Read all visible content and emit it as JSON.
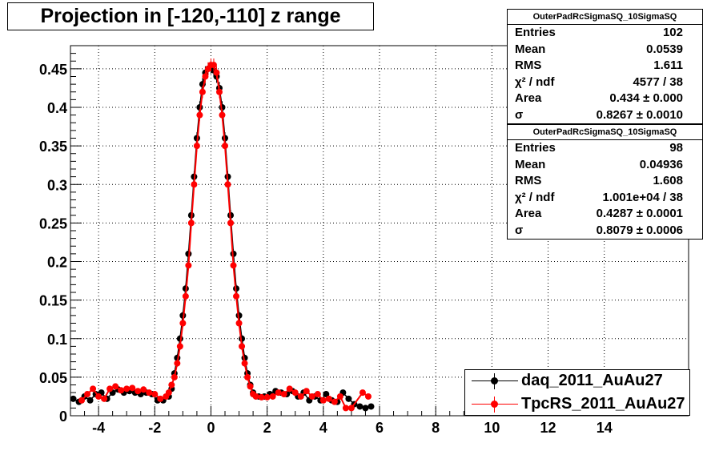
{
  "title": "Projection in [-120,-110] z range",
  "stats_boxes": [
    {
      "name": "OuterPadRcSigmaSQ_10SigmaSQ",
      "rows": [
        {
          "label": "Entries",
          "value": "102"
        },
        {
          "label": "Mean",
          "value": "0.0539"
        },
        {
          "label": "RMS",
          "value": "1.611"
        },
        {
          "label": "χ² / ndf",
          "value": "4577 / 38"
        },
        {
          "label": "Area",
          "value": "0.434 ± 0.000"
        },
        {
          "label": "σ",
          "value": "0.8267 ± 0.0010"
        }
      ]
    },
    {
      "name": "OuterPadRcSigmaSQ_10SigmaSQ",
      "rows": [
        {
          "label": "Entries",
          "value": "98"
        },
        {
          "label": "Mean",
          "value": "0.04936"
        },
        {
          "label": "RMS",
          "value": "1.608"
        },
        {
          "label": "χ² / ndf",
          "value": "1.001e+04 / 38"
        },
        {
          "label": "Area",
          "value": "0.4287 ± 0.0001"
        },
        {
          "label": "σ",
          "value": "0.8079 ± 0.0006"
        }
      ]
    }
  ],
  "legend": [
    {
      "label": "daq_2011_AuAu27",
      "color": "#000000"
    },
    {
      "label": "TpcRS_2011_AuAu27",
      "color": "#ff0000"
    }
  ],
  "chart_data": {
    "type": "scatter",
    "title": "Projection in [-120,-110] z range",
    "xlabel": "",
    "ylabel": "",
    "xlim": [
      -5,
      17
    ],
    "ylim": [
      0,
      0.48
    ],
    "x_ticks": [
      -4,
      -2,
      0,
      2,
      4,
      6,
      8,
      10,
      12,
      14
    ],
    "y_ticks": [
      0,
      0.05,
      0.1,
      0.15,
      0.2,
      0.25,
      0.3,
      0.35,
      0.4,
      0.45
    ],
    "y_tick_labels": [
      "0",
      "0.05",
      "0.1",
      "0.15",
      "0.2",
      "0.25",
      "0.3",
      "0.35",
      "0.4",
      "0.45"
    ],
    "grid": true,
    "legend_position": "bottom-right",
    "series": [
      {
        "name": "daq_2011_AuAu27",
        "color": "#000000",
        "points": [
          [
            -4.9,
            0.022
          ],
          [
            -4.7,
            0.018
          ],
          [
            -4.5,
            0.025
          ],
          [
            -4.3,
            0.02
          ],
          [
            -4.1,
            0.028
          ],
          [
            -3.9,
            0.03
          ],
          [
            -3.7,
            0.022
          ],
          [
            -3.5,
            0.03
          ],
          [
            -3.3,
            0.034
          ],
          [
            -3.1,
            0.03
          ],
          [
            -2.9,
            0.032
          ],
          [
            -2.7,
            0.03
          ],
          [
            -2.5,
            0.028
          ],
          [
            -2.3,
            0.03
          ],
          [
            -2.1,
            0.028
          ],
          [
            -1.9,
            0.02
          ],
          [
            -1.7,
            0.02
          ],
          [
            -1.5,
            0.025
          ],
          [
            -1.4,
            0.035
          ],
          [
            -1.3,
            0.055
          ],
          [
            -1.2,
            0.075
          ],
          [
            -1.1,
            0.1
          ],
          [
            -1.0,
            0.13
          ],
          [
            -0.9,
            0.165
          ],
          [
            -0.8,
            0.21
          ],
          [
            -0.7,
            0.26
          ],
          [
            -0.6,
            0.31
          ],
          [
            -0.5,
            0.36
          ],
          [
            -0.4,
            0.4
          ],
          [
            -0.3,
            0.43
          ],
          [
            -0.2,
            0.445
          ],
          [
            -0.1,
            0.45
          ],
          [
            0.0,
            0.452
          ],
          [
            0.1,
            0.448
          ],
          [
            0.2,
            0.44
          ],
          [
            0.3,
            0.425
          ],
          [
            0.4,
            0.4
          ],
          [
            0.5,
            0.36
          ],
          [
            0.6,
            0.31
          ],
          [
            0.7,
            0.26
          ],
          [
            0.8,
            0.21
          ],
          [
            0.9,
            0.165
          ],
          [
            1.0,
            0.13
          ],
          [
            1.1,
            0.1
          ],
          [
            1.2,
            0.075
          ],
          [
            1.3,
            0.055
          ],
          [
            1.4,
            0.04
          ],
          [
            1.5,
            0.03
          ],
          [
            1.7,
            0.025
          ],
          [
            1.9,
            0.025
          ],
          [
            2.1,
            0.028
          ],
          [
            2.3,
            0.032
          ],
          [
            2.5,
            0.03
          ],
          [
            2.7,
            0.028
          ],
          [
            2.9,
            0.032
          ],
          [
            3.1,
            0.025
          ],
          [
            3.3,
            0.03
          ],
          [
            3.5,
            0.02
          ],
          [
            3.7,
            0.025
          ],
          [
            3.9,
            0.02
          ],
          [
            4.1,
            0.028
          ],
          [
            4.3,
            0.02
          ],
          [
            4.5,
            0.018
          ],
          [
            4.7,
            0.03
          ],
          [
            4.9,
            0.022
          ],
          [
            5.1,
            0.015
          ],
          [
            5.3,
            0.012
          ],
          [
            5.5,
            0.01
          ],
          [
            5.7,
            0.012
          ]
        ]
      },
      {
        "name": "TpcRS_2011_AuAu27",
        "color": "#ff0000",
        "points": [
          [
            -4.6,
            0.02
          ],
          [
            -4.4,
            0.028
          ],
          [
            -4.2,
            0.035
          ],
          [
            -4.0,
            0.025
          ],
          [
            -3.8,
            0.022
          ],
          [
            -3.6,
            0.035
          ],
          [
            -3.4,
            0.038
          ],
          [
            -3.2,
            0.033
          ],
          [
            -3.0,
            0.035
          ],
          [
            -2.8,
            0.036
          ],
          [
            -2.6,
            0.032
          ],
          [
            -2.4,
            0.034
          ],
          [
            -2.2,
            0.03
          ],
          [
            -2.0,
            0.028
          ],
          [
            -1.8,
            0.022
          ],
          [
            -1.6,
            0.025
          ],
          [
            -1.5,
            0.03
          ],
          [
            -1.4,
            0.04
          ],
          [
            -1.3,
            0.05
          ],
          [
            -1.2,
            0.068
          ],
          [
            -1.1,
            0.09
          ],
          [
            -1.0,
            0.12
          ],
          [
            -0.9,
            0.155
          ],
          [
            -0.8,
            0.195
          ],
          [
            -0.7,
            0.25
          ],
          [
            -0.6,
            0.3
          ],
          [
            -0.5,
            0.35
          ],
          [
            -0.4,
            0.39
          ],
          [
            -0.3,
            0.42
          ],
          [
            -0.2,
            0.44
          ],
          [
            -0.1,
            0.45
          ],
          [
            0.0,
            0.455
          ],
          [
            0.1,
            0.455
          ],
          [
            0.2,
            0.445
          ],
          [
            0.3,
            0.42
          ],
          [
            0.4,
            0.39
          ],
          [
            0.5,
            0.35
          ],
          [
            0.6,
            0.3
          ],
          [
            0.7,
            0.25
          ],
          [
            0.8,
            0.195
          ],
          [
            0.9,
            0.155
          ],
          [
            1.0,
            0.12
          ],
          [
            1.1,
            0.09
          ],
          [
            1.2,
            0.068
          ],
          [
            1.3,
            0.05
          ],
          [
            1.4,
            0.038
          ],
          [
            1.5,
            0.028
          ],
          [
            1.6,
            0.025
          ],
          [
            1.8,
            0.024
          ],
          [
            2.0,
            0.024
          ],
          [
            2.2,
            0.025
          ],
          [
            2.4,
            0.03
          ],
          [
            2.6,
            0.028
          ],
          [
            2.8,
            0.035
          ],
          [
            3.0,
            0.03
          ],
          [
            3.2,
            0.025
          ],
          [
            3.4,
            0.032
          ],
          [
            3.6,
            0.025
          ],
          [
            3.8,
            0.028
          ],
          [
            4.0,
            0.02
          ],
          [
            4.2,
            0.022
          ],
          [
            4.4,
            0.018
          ],
          [
            4.6,
            0.025
          ],
          [
            4.8,
            0.01
          ],
          [
            5.0,
            0.01
          ],
          [
            5.4,
            0.03
          ],
          [
            5.6,
            0.025
          ]
        ]
      }
    ]
  }
}
